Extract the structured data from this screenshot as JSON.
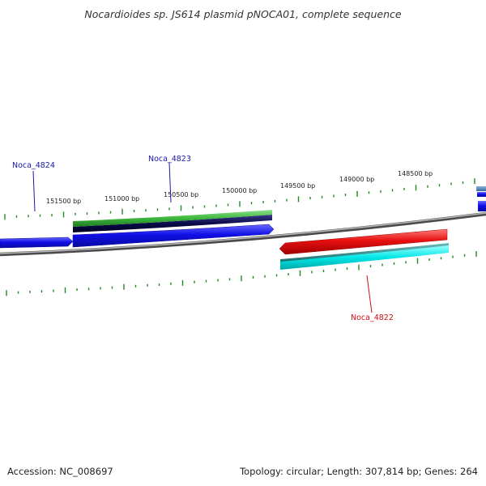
{
  "title": "Nocardioides sp. JS614 plasmid pNOCA01, complete sequence",
  "ticks": {
    "labels": [
      "151500 bp",
      "151000 bp",
      "150500 bp",
      "150000 bp",
      "149500 bp",
      "149000 bp",
      "148500 bp"
    ],
    "color": "#228822"
  },
  "genes": [
    {
      "name": "Noca_4824",
      "color": "#1a1aa8",
      "strand": "+"
    },
    {
      "name": "Noca_4823",
      "color": "#1a1aa8",
      "strand": "+"
    },
    {
      "name": "Noca_4822",
      "color": "#cc1111",
      "strand": "-"
    }
  ],
  "colors": {
    "backbone": "#7a7a7a",
    "forward_cds": "#1010e0",
    "forward_green": "#3cb83c",
    "forward_navy": "#0a0a4a",
    "reverse_cds": "#e01010",
    "reverse_cyan": "#00e6e6",
    "reverse_teal": "#2a8a8a"
  },
  "footer": {
    "accession": "Accession: NC_008697",
    "info": "Topology: circular; Length: 307,814 bp; Genes: 264"
  }
}
